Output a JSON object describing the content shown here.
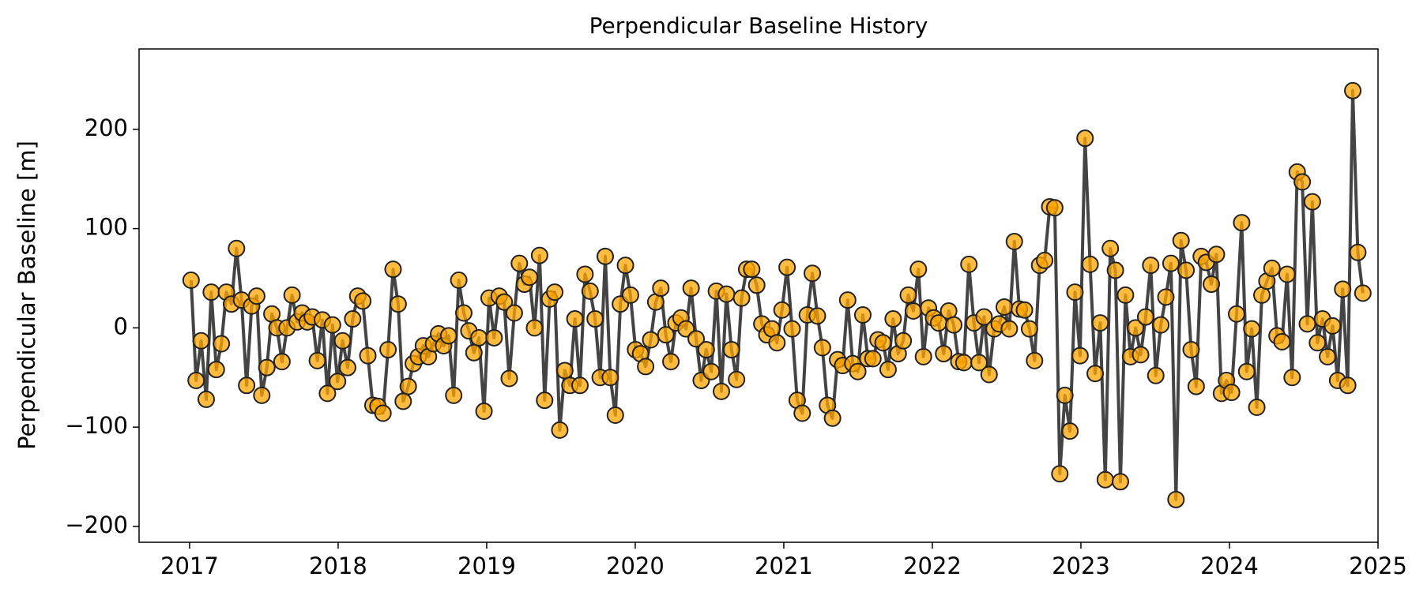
{
  "chart_data": {
    "type": "line",
    "title": "Perpendicular Baseline History",
    "ylabel": "Perpendicular Baseline [m]",
    "color": "#444444",
    "marker_color": "#ffa500",
    "xlim": [
      2016.66,
      2025.0
    ],
    "ylim": [
      -216,
      281
    ],
    "xticks": [
      2017,
      2018,
      2019,
      2020,
      2021,
      2022,
      2023,
      2024,
      2025
    ],
    "yticks": [
      {
        "value": -200,
        "label": "−200"
      },
      {
        "value": -100,
        "label": "−100"
      },
      0,
      100,
      200
    ],
    "x": [
      2017.01,
      2017.044,
      2017.078,
      2017.112,
      2017.146,
      2017.18,
      2017.214,
      2017.248,
      2017.282,
      2017.316,
      2017.35,
      2017.384,
      2017.418,
      2017.452,
      2017.486,
      2017.52,
      2017.554,
      2017.588,
      2017.622,
      2017.656,
      2017.69,
      2017.724,
      2017.758,
      2017.792,
      2017.826,
      2017.86,
      2017.894,
      2017.928,
      2017.962,
      2017.996,
      2018.03,
      2018.064,
      2018.098,
      2018.132,
      2018.166,
      2018.2,
      2018.234,
      2018.268,
      2018.302,
      2018.336,
      2018.37,
      2018.404,
      2018.438,
      2018.472,
      2018.506,
      2018.54,
      2018.574,
      2018.608,
      2018.642,
      2018.676,
      2018.71,
      2018.744,
      2018.778,
      2018.812,
      2018.846,
      2018.88,
      2018.914,
      2018.948,
      2018.982,
      2019.016,
      2019.05,
      2019.084,
      2019.118,
      2019.152,
      2019.186,
      2019.22,
      2019.254,
      2019.288,
      2019.322,
      2019.356,
      2019.39,
      2019.424,
      2019.458,
      2019.492,
      2019.526,
      2019.56,
      2019.594,
      2019.628,
      2019.662,
      2019.696,
      2019.73,
      2019.764,
      2019.798,
      2019.832,
      2019.866,
      2019.9,
      2019.934,
      2019.968,
      2020.002,
      2020.036,
      2020.07,
      2020.104,
      2020.138,
      2020.172,
      2020.206,
      2020.24,
      2020.274,
      2020.308,
      2020.342,
      2020.376,
      2020.41,
      2020.444,
      2020.478,
      2020.512,
      2020.546,
      2020.58,
      2020.614,
      2020.648,
      2020.682,
      2020.716,
      2020.75,
      2020.784,
      2020.818,
      2020.852,
      2020.886,
      2020.92,
      2020.954,
      2020.988,
      2021.022,
      2021.056,
      2021.09,
      2021.124,
      2021.158,
      2021.192,
      2021.226,
      2021.26,
      2021.294,
      2021.328,
      2021.362,
      2021.396,
      2021.43,
      2021.464,
      2021.498,
      2021.532,
      2021.566,
      2021.6,
      2021.634,
      2021.668,
      2021.702,
      2021.736,
      2021.77,
      2021.804,
      2021.838,
      2021.872,
      2021.906,
      2021.94,
      2021.974,
      2022.008,
      2022.042,
      2022.076,
      2022.11,
      2022.144,
      2022.178,
      2022.212,
      2022.246,
      2022.28,
      2022.314,
      2022.348,
      2022.382,
      2022.416,
      2022.45,
      2022.484,
      2022.518,
      2022.552,
      2022.586,
      2022.62,
      2022.654,
      2022.688,
      2022.722,
      2022.756,
      2022.79,
      2022.824,
      2022.858,
      2022.892,
      2022.926,
      2022.96,
      2022.994,
      2023.028,
      2023.062,
      2023.096,
      2023.13,
      2023.164,
      2023.198,
      2023.232,
      2023.266,
      2023.3,
      2023.334,
      2023.368,
      2023.402,
      2023.436,
      2023.47,
      2023.504,
      2023.538,
      2023.572,
      2023.606,
      2023.64,
      2023.674,
      2023.708,
      2023.742,
      2023.776,
      2023.81,
      2023.844,
      2023.878,
      2023.912,
      2023.946,
      2023.98,
      2024.014,
      2024.048,
      2024.082,
      2024.116,
      2024.15,
      2024.184,
      2024.218,
      2024.252,
      2024.286,
      2024.32,
      2024.354,
      2024.388,
      2024.422,
      2024.456,
      2024.49,
      2024.524,
      2024.558,
      2024.592,
      2024.626,
      2024.66,
      2024.694,
      2024.728,
      2024.762,
      2024.796,
      2024.83,
      2024.864,
      2024.898
    ],
    "values": [
      48,
      -53,
      -13,
      -72,
      36,
      -42,
      -16,
      36,
      24,
      80,
      28,
      -58,
      22,
      32,
      -68,
      -40,
      14,
      0,
      -34,
      0,
      33,
      6,
      15,
      6,
      11,
      -33,
      8,
      -66,
      3,
      -54,
      -13,
      -40,
      9,
      32,
      27,
      -28,
      -78,
      -79,
      -86,
      -22,
      59,
      24,
      -74,
      -59,
      -36,
      -29,
      -18,
      -29,
      -16,
      -6,
      -18,
      -8,
      -68,
      48,
      15,
      -3,
      -25,
      -10,
      -84,
      30,
      -10,
      32,
      26,
      -51,
      15,
      65,
      44,
      51,
      0,
      73,
      -73,
      29,
      36,
      -103,
      -43,
      -58,
      9,
      -58,
      54,
      37,
      9,
      -50,
      72,
      -50,
      -88,
      24,
      63,
      33,
      -22,
      -26,
      -39,
      -12,
      26,
      40,
      -7,
      -34,
      5,
      10,
      -1,
      40,
      -11,
      -53,
      -22,
      -44,
      37,
      -64,
      34,
      -22,
      -52,
      30,
      59,
      59,
      43,
      4,
      -7,
      -1,
      -15,
      18,
      61,
      -1,
      -73,
      -86,
      13,
      55,
      12,
      -20,
      -78,
      -91,
      -32,
      -38,
      28,
      -36,
      -44,
      13,
      -31,
      -31,
      -12,
      -15,
      -42,
      9,
      -26,
      -13,
      33,
      17,
      59,
      -29,
      20,
      10,
      5,
      -26,
      17,
      3,
      -34,
      -35,
      64,
      5,
      -35,
      11,
      -47,
      -1,
      4,
      21,
      -1,
      87,
      19,
      18,
      -1,
      -33,
      63,
      68,
      122,
      121,
      -147,
      -68,
      -104,
      36,
      -28,
      191,
      64,
      -46,
      5,
      -153,
      80,
      58,
      -155,
      33,
      -29,
      0,
      -27,
      11,
      63,
      -48,
      3,
      31,
      65,
      -173,
      88,
      58,
      -22,
      -59,
      72,
      66,
      44,
      74,
      -66,
      -53,
      -65,
      14,
      106,
      -44,
      -1,
      -80,
      33,
      47,
      60,
      -8,
      -14,
      54,
      -50,
      157,
      147,
      4,
      127,
      -15,
      9,
      -29,
      2,
      -53,
      39,
      -58,
      239,
      76,
      35
    ]
  }
}
